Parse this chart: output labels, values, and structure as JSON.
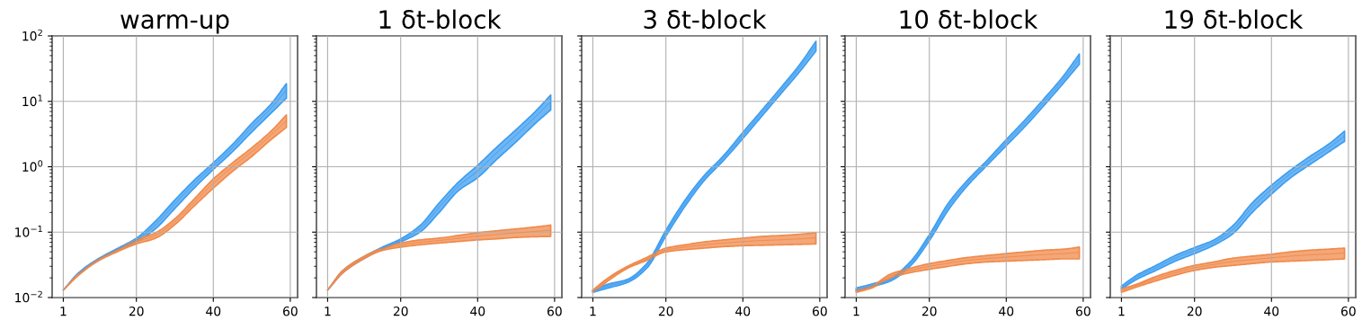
{
  "chart_data": [
    {
      "type": "line",
      "title": "warm-up",
      "x": [
        1,
        5,
        10,
        15,
        20,
        25,
        30,
        35,
        40,
        45,
        50,
        55,
        59
      ],
      "xlim": [
        -1.9,
        61.9
      ],
      "xticks": [
        1,
        20,
        40,
        60
      ],
      "ylim": [
        0.01,
        100
      ],
      "yticks": [
        {
          "value": 0.01,
          "label": "10$^{−2}$"
        },
        {
          "value": 0.1,
          "label": "10$^{−1}$"
        },
        {
          "value": 1,
          "label": "10$^{0}$"
        },
        {
          "value": 10,
          "label": "10$^{1}$"
        },
        {
          "value": 100,
          "label": "10$^{2}$"
        }
      ],
      "log": "y",
      "grid": true,
      "series": [
        {
          "color": "#3d9df0",
          "values": [
            null,
            0.0235,
            0.038,
            0.0545,
            0.076,
            0.13,
            0.27,
            0.545,
            1.03,
            1.95,
            4.0,
            7.85,
            15
          ],
          "lower": [
            0.013,
            0.023,
            0.037,
            0.053,
            0.071,
            0.113,
            0.23,
            0.47,
            0.91,
            1.7,
            3.4,
            6.6,
            11.2
          ],
          "upper": [
            0.013,
            0.024,
            0.039,
            0.056,
            0.081,
            0.148,
            0.31,
            0.62,
            1.15,
            2.2,
            4.6,
            9.1,
            18.7
          ]
        },
        {
          "color": "#f08a4b",
          "values": [
            0.013,
            0.0225,
            0.037,
            0.052,
            0.071,
            0.0895,
            0.145,
            0.285,
            0.56,
            1.0,
            1.7,
            3.05,
            5.1
          ],
          "lower": [
            0.013,
            0.022,
            0.036,
            0.05,
            0.066,
            0.081,
            0.13,
            0.25,
            0.47,
            0.85,
            1.44,
            2.6,
            4.0
          ],
          "upper": [
            0.013,
            0.023,
            0.038,
            0.054,
            0.076,
            0.098,
            0.16,
            0.32,
            0.65,
            1.15,
            1.95,
            3.5,
            6.2
          ]
        }
      ]
    },
    {
      "type": "line",
      "title": "1 δt-block",
      "x": [
        1,
        5,
        10,
        15,
        20,
        25,
        30,
        35,
        40,
        45,
        50,
        55,
        59
      ],
      "xlim": [
        -1.9,
        61.9
      ],
      "xticks": [
        1,
        20,
        40,
        60
      ],
      "ylim": [
        0.01,
        100
      ],
      "yticks": [
        {
          "value": 0.01,
          "label": null
        },
        {
          "value": 0.1,
          "label": null
        },
        {
          "value": 1,
          "label": null
        },
        {
          "value": 10,
          "label": null
        },
        {
          "value": 100,
          "label": null
        }
      ],
      "log": "y",
      "grid": true,
      "tick_labels": "x",
      "series": [
        {
          "color": "#3d9df0",
          "values": [
            null,
            null,
            null,
            0.056,
            0.075,
            0.113,
            0.24,
            0.505,
            0.865,
            1.65,
            3.05,
            5.8,
            9.95
          ],
          "lower": [
            0.013,
            0.024,
            0.038,
            0.054,
            0.071,
            0.1,
            0.2,
            0.43,
            0.68,
            1.3,
            2.4,
            4.6,
            7.4
          ],
          "upper": [
            0.013,
            0.026,
            0.041,
            0.058,
            0.079,
            0.126,
            0.28,
            0.58,
            1.05,
            2.0,
            3.7,
            7.0,
            12.5
          ]
        },
        {
          "color": "#f08a4b",
          "values": [
            0.013,
            0.025,
            0.0395,
            0.054,
            0.0635,
            0.07,
            0.0745,
            0.0805,
            0.087,
            0.092,
            0.0975,
            0.1025,
            0.107
          ],
          "lower": [
            0.013,
            0.024,
            0.038,
            0.052,
            0.059,
            0.064,
            0.068,
            0.072,
            0.076,
            0.079,
            0.083,
            0.085,
            0.086
          ],
          "upper": [
            0.013,
            0.026,
            0.041,
            0.056,
            0.068,
            0.076,
            0.081,
            0.089,
            0.098,
            0.105,
            0.112,
            0.12,
            0.128
          ]
        }
      ]
    },
    {
      "type": "line",
      "title": "3 δt-block",
      "x": [
        1,
        5,
        10,
        15,
        20,
        25,
        30,
        35,
        40,
        45,
        50,
        55,
        59
      ],
      "xlim": [
        -1.9,
        61.9
      ],
      "xticks": [
        1,
        20,
        40,
        60
      ],
      "ylim": [
        0.01,
        100
      ],
      "yticks": [
        {
          "value": 0.01,
          "label": null
        },
        {
          "value": 0.1,
          "label": null
        },
        {
          "value": 1,
          "label": null
        },
        {
          "value": 10,
          "label": null
        },
        {
          "value": 100,
          "label": null
        }
      ],
      "log": "y",
      "grid": true,
      "tick_labels": "x",
      "series": [
        {
          "color": "#3d9df0",
          "values": [
            0.0125,
            0.015,
            0.018,
            0.0305,
            0.097,
            0.28,
            0.68,
            1.37,
            3.0,
            6.7,
            14.9,
            34,
            71
          ],
          "lower": [
            0.012,
            0.014,
            0.017,
            0.028,
            0.087,
            0.25,
            0.62,
            1.25,
            2.7,
            6.0,
            13.3,
            29.5,
            59
          ],
          "upper": [
            0.013,
            0.016,
            0.019,
            0.033,
            0.107,
            0.31,
            0.74,
            1.48,
            3.35,
            7.4,
            16.5,
            38,
            83
          ]
        },
        {
          "color": "#f08a4b",
          "values": [
            0.0125,
            0.019,
            0.029,
            0.039,
            0.0535,
            0.059,
            0.064,
            0.068,
            0.0715,
            0.0745,
            0.0765,
            0.079,
            0.082
          ],
          "lower": [
            0.012,
            0.018,
            0.028,
            0.037,
            0.05,
            0.054,
            0.057,
            0.06,
            0.062,
            0.063,
            0.064,
            0.065,
            0.066
          ],
          "upper": [
            0.013,
            0.02,
            0.03,
            0.041,
            0.057,
            0.064,
            0.071,
            0.076,
            0.081,
            0.086,
            0.089,
            0.093,
            0.098
          ]
        }
      ]
    },
    {
      "type": "line",
      "title": "10 δt-block",
      "x": [
        1,
        5,
        10,
        15,
        20,
        25,
        30,
        35,
        40,
        45,
        50,
        55,
        59
      ],
      "xlim": [
        -1.9,
        61.9
      ],
      "xticks": [
        1,
        20,
        40,
        60
      ],
      "ylim": [
        0.01,
        100
      ],
      "yticks": [
        {
          "value": 0.01,
          "label": null
        },
        {
          "value": 0.1,
          "label": null
        },
        {
          "value": 1,
          "label": null
        },
        {
          "value": 10,
          "label": null
        },
        {
          "value": 100,
          "label": null
        }
      ],
      "log": "y",
      "grid": true,
      "tick_labels": "x",
      "series": [
        {
          "color": "#3d9df0",
          "values": [
            0.013,
            0.015,
            0.019,
            0.0325,
            0.0825,
            0.25,
            0.575,
            1.15,
            2.35,
            4.75,
            10.1,
            22,
            45
          ],
          "lower": [
            0.0125,
            0.0145,
            0.018,
            0.03,
            0.074,
            0.22,
            0.52,
            1.05,
            2.1,
            4.2,
            8.9,
            19.4,
            37
          ],
          "upper": [
            0.014,
            0.016,
            0.02,
            0.035,
            0.091,
            0.28,
            0.63,
            1.25,
            2.6,
            5.3,
            11.3,
            25,
            53
          ]
        },
        {
          "color": "#f08a4b",
          "values": [
            0.0125,
            0.0145,
            0.0215,
            0.026,
            0.03,
            0.0335,
            0.037,
            0.0395,
            0.0415,
            0.0435,
            0.0455,
            0.047,
            0.049
          ],
          "lower": [
            0.012,
            0.014,
            0.02,
            0.024,
            0.027,
            0.03,
            0.033,
            0.035,
            0.036,
            0.037,
            0.038,
            0.039,
            0.039
          ],
          "upper": [
            0.013,
            0.015,
            0.023,
            0.028,
            0.033,
            0.037,
            0.041,
            0.044,
            0.047,
            0.05,
            0.053,
            0.055,
            0.059
          ]
        }
      ]
    },
    {
      "type": "line",
      "title": "19 δt-block",
      "x": [
        1,
        5,
        10,
        15,
        20,
        25,
        30,
        35,
        40,
        45,
        50,
        55,
        59
      ],
      "xlim": [
        -1.9,
        61.9
      ],
      "xticks": [
        1,
        20,
        40,
        60
      ],
      "ylim": [
        0.01,
        100
      ],
      "yticks": [
        {
          "value": 0.01,
          "label": null
        },
        {
          "value": 0.1,
          "label": null
        },
        {
          "value": 1,
          "label": null
        },
        {
          "value": 10,
          "label": null
        },
        {
          "value": 100,
          "label": null
        }
      ],
      "log": "y",
      "grid": true,
      "tick_labels": "x",
      "series": [
        {
          "color": "#3d9df0",
          "values": [
            0.014,
            0.0205,
            0.0285,
            0.04,
            0.0525,
            0.0695,
            0.11,
            0.24,
            0.45,
            0.785,
            1.26,
            1.97,
            2.95
          ],
          "lower": [
            0.0135,
            0.019,
            0.026,
            0.036,
            0.047,
            0.063,
            0.095,
            0.2,
            0.38,
            0.68,
            1.08,
            1.7,
            2.45
          ],
          "upper": [
            0.015,
            0.022,
            0.031,
            0.044,
            0.058,
            0.076,
            0.126,
            0.28,
            0.52,
            0.89,
            1.44,
            2.24,
            3.5
          ]
        },
        {
          "color": "#f08a4b",
          "values": [
            0.0128,
            0.0153,
            0.0195,
            0.024,
            0.0285,
            0.032,
            0.0355,
            0.038,
            0.0405,
            0.043,
            0.045,
            0.0465,
            0.048
          ],
          "lower": [
            0.012,
            0.0145,
            0.018,
            0.022,
            0.026,
            0.029,
            0.031,
            0.033,
            0.035,
            0.036,
            0.037,
            0.038,
            0.039
          ],
          "upper": [
            0.0135,
            0.016,
            0.021,
            0.026,
            0.031,
            0.035,
            0.04,
            0.043,
            0.046,
            0.05,
            0.053,
            0.055,
            0.057
          ]
        }
      ]
    }
  ]
}
